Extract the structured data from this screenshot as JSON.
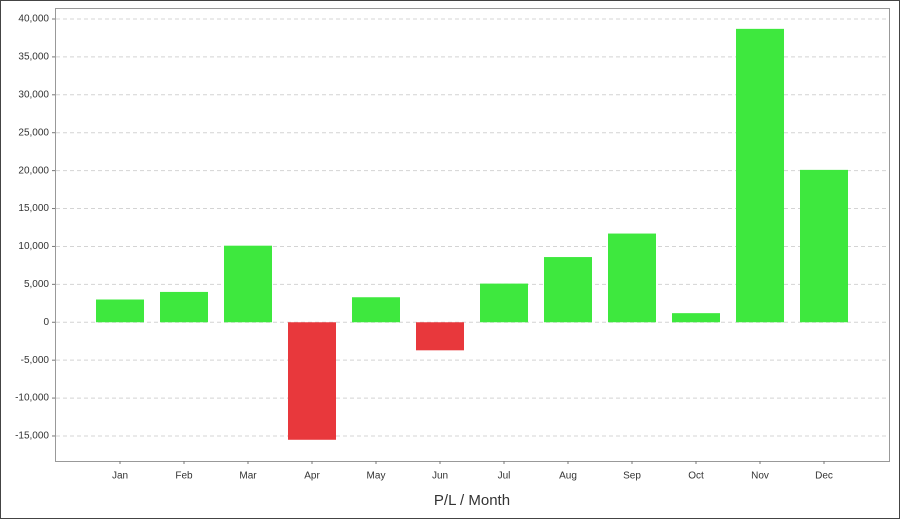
{
  "chart_data": {
    "type": "bar",
    "x_label": "P/L / Month",
    "categories": [
      "Jan",
      "Feb",
      "Mar",
      "Apr",
      "May",
      "Jun",
      "Jul",
      "Aug",
      "Sep",
      "Oct",
      "Nov",
      "Dec"
    ],
    "values": [
      3000,
      4000,
      10100,
      -15500,
      3300,
      -3700,
      5100,
      8600,
      11700,
      1200,
      38700,
      20100
    ],
    "positive_color": "#3ee83e",
    "negative_color": "#e8383c",
    "ylim": [
      -18300,
      41450
    ],
    "yticks": [
      {
        "value": -15000,
        "label": "-15,000"
      },
      {
        "value": -10000,
        "label": "-10,000"
      },
      {
        "value": -5000,
        "label": "-5,000"
      },
      0,
      {
        "value": 5000,
        "label": "5,000"
      },
      {
        "value": 10000,
        "label": "10,000"
      },
      {
        "value": 15000,
        "label": "15,000"
      },
      {
        "value": 20000,
        "label": "20,000"
      },
      {
        "value": 25000,
        "label": "25,000"
      },
      {
        "value": 30000,
        "label": "30,000"
      },
      {
        "value": 35000,
        "label": "35,000"
      },
      {
        "value": 40000,
        "label": "40,000"
      }
    ],
    "grid": true
  }
}
